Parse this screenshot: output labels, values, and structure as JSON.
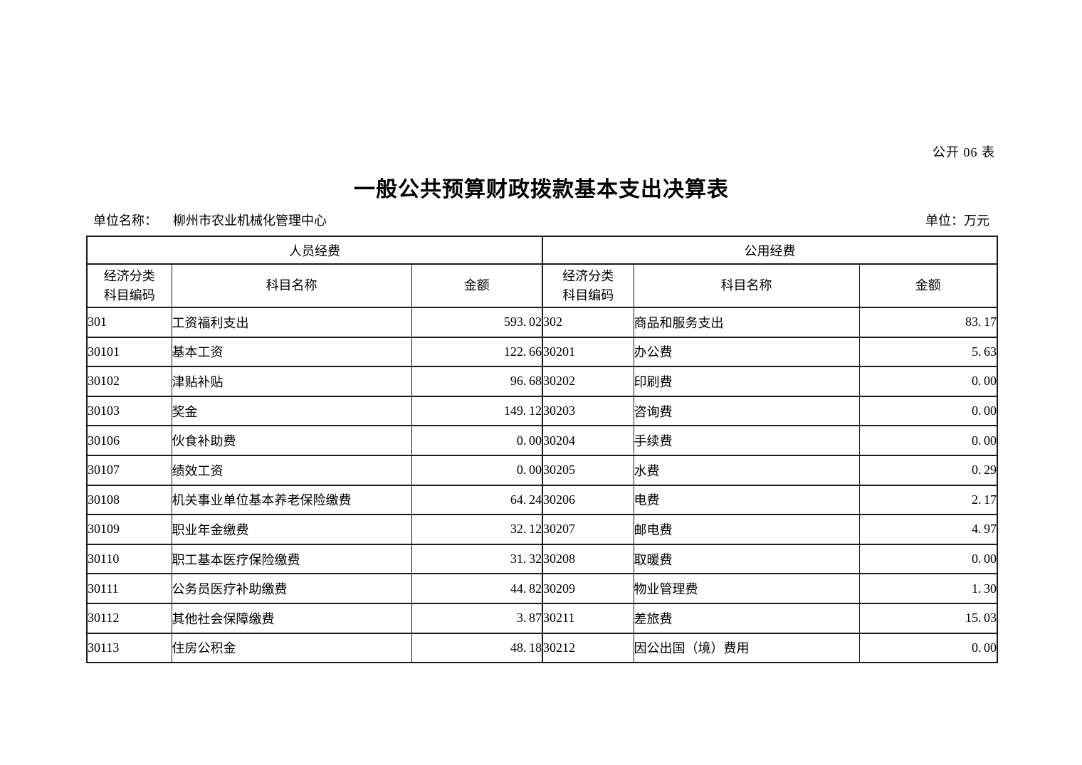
{
  "doc": {
    "note": "公开 06 表",
    "title": "一般公共预算财政拨款基本支出决算表",
    "unit_name_label": "单位名称：",
    "unit_name_value": "柳州市农业机械化管理中心",
    "unit_label": "单位：万元"
  },
  "table": {
    "groups": {
      "left": "人员经费",
      "right": "公用经费"
    },
    "headers": {
      "code_line1": "经济分类",
      "code_line2": "科目编码",
      "name": "科目名称",
      "amount": "金额"
    },
    "left_rows": [
      {
        "code": "301",
        "name": "工资福利支出",
        "amount": "593.02"
      },
      {
        "code": "30101",
        "name": "基本工资",
        "amount": "122.66"
      },
      {
        "code": "30102",
        "name": "津贴补贴",
        "amount": "96.68"
      },
      {
        "code": "30103",
        "name": "奖金",
        "amount": "149.12"
      },
      {
        "code": "30106",
        "name": "伙食补助费",
        "amount": "0.00"
      },
      {
        "code": "30107",
        "name": "绩效工资",
        "amount": "0.00"
      },
      {
        "code": "30108",
        "name": "机关事业单位基本养老保险缴费",
        "amount": "64.24"
      },
      {
        "code": "30109",
        "name": "职业年金缴费",
        "amount": "32.12"
      },
      {
        "code": "30110",
        "name": "职工基本医疗保险缴费",
        "amount": "31.32"
      },
      {
        "code": "30111",
        "name": "公务员医疗补助缴费",
        "amount": "44.82"
      },
      {
        "code": "30112",
        "name": "其他社会保障缴费",
        "amount": "3.87"
      },
      {
        "code": "30113",
        "name": "住房公积金",
        "amount": "48.18"
      }
    ],
    "right_rows": [
      {
        "code": "302",
        "name": "商品和服务支出",
        "amount": "83.17"
      },
      {
        "code": "30201",
        "name": "办公费",
        "amount": "5.63"
      },
      {
        "code": "30202",
        "name": "印刷费",
        "amount": "0.00"
      },
      {
        "code": "30203",
        "name": "咨询费",
        "amount": "0.00"
      },
      {
        "code": "30204",
        "name": "手续费",
        "amount": "0.00"
      },
      {
        "code": "30205",
        "name": "水费",
        "amount": "0.29"
      },
      {
        "code": "30206",
        "name": "电费",
        "amount": "2.17"
      },
      {
        "code": "30207",
        "name": "邮电费",
        "amount": "4.97"
      },
      {
        "code": "30208",
        "name": "取暖费",
        "amount": "0.00"
      },
      {
        "code": "30209",
        "name": "物业管理费",
        "amount": "1.30"
      },
      {
        "code": "30211",
        "name": "差旅费",
        "amount": "15.03"
      },
      {
        "code": "30212",
        "name": "因公出国（境）费用",
        "amount": "0.00"
      }
    ]
  }
}
